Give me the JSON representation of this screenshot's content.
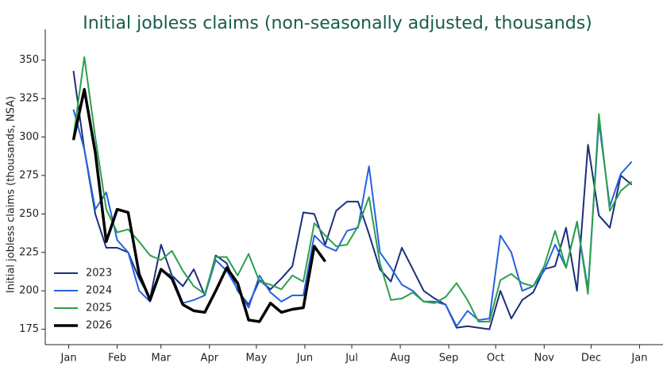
{
  "chart_data": {
    "type": "line",
    "title": "Initial jobless claims (non-seasonally adjusted, thousands)",
    "y_label": "Initial jobless claims (thousands, NSA)",
    "x": [
      3,
      10,
      17,
      24,
      31,
      38,
      45,
      52,
      59,
      66,
      73,
      80,
      87,
      94,
      101,
      108,
      115,
      122,
      129,
      136,
      143,
      150,
      157,
      164,
      171,
      178,
      185,
      192,
      199,
      206,
      213,
      220,
      227,
      234,
      241,
      248,
      255,
      262,
      269,
      276,
      283,
      290,
      297,
      304,
      311,
      318,
      325,
      332,
      339,
      346,
      353,
      360
    ],
    "xlim": [
      -15,
      380
    ],
    "xticks": [
      {
        "value": 0,
        "label": "Jan"
      },
      {
        "value": 31,
        "label": "Feb"
      },
      {
        "value": 59,
        "label": "Mar"
      },
      {
        "value": 90,
        "label": "Apr"
      },
      {
        "value": 120,
        "label": "May"
      },
      {
        "value": 151,
        "label": "Jun"
      },
      {
        "value": 181,
        "label": "Jul"
      },
      {
        "value": 212,
        "label": "Aug"
      },
      {
        "value": 243,
        "label": "Sep"
      },
      {
        "value": 273,
        "label": "Oct"
      },
      {
        "value": 304,
        "label": "Nov"
      },
      {
        "value": 334,
        "label": "Dec"
      },
      {
        "value": 365,
        "label": "Jan"
      }
    ],
    "ylim": [
      165,
      370
    ],
    "yticks": [
      175,
      200,
      225,
      250,
      275,
      300,
      325,
      350
    ],
    "grid": false,
    "legend": "lower left",
    "series": [
      {
        "name": "2023",
        "color": "#1b2f7a",
        "linewidth": 2,
        "values": [
          343,
          292,
          250,
          228,
          228,
          225,
          208,
          195,
          230,
          210,
          203,
          214,
          197,
          223,
          218,
          200,
          191,
          207,
          201,
          208,
          216,
          251,
          250,
          230,
          252,
          258,
          258,
          237,
          214,
          206,
          228,
          214,
          200,
          195,
          191,
          176,
          177,
          176,
          175,
          200,
          182,
          194,
          199,
          214,
          216,
          241,
          200,
          295,
          249,
          241,
          275,
          269
        ]
      },
      {
        "name": "2024",
        "color": "#2563e0",
        "linewidth": 2,
        "values": [
          318,
          292,
          253,
          264,
          233,
          225,
          200,
          193,
          213,
          210,
          192,
          194,
          197,
          220,
          213,
          201,
          189,
          210,
          199,
          193,
          197,
          197,
          236,
          229,
          226,
          239,
          241,
          281,
          225,
          215,
          204,
          200,
          193,
          193,
          191,
          177,
          187,
          181,
          182,
          236,
          225,
          200,
          203,
          213,
          230,
          215,
          245,
          201,
          310,
          255,
          276,
          284
        ]
      },
      {
        "name": "2025",
        "color": "#2ca04c",
        "linewidth": 2,
        "values": [
          300,
          352,
          300,
          253,
          238,
          240,
          232,
          223,
          220,
          226,
          213,
          203,
          198,
          222,
          222,
          210,
          224,
          206,
          204,
          201,
          210,
          206,
          244,
          236,
          229,
          230,
          242,
          261,
          218,
          194,
          195,
          199,
          193,
          192,
          196,
          205,
          194,
          180,
          180,
          207,
          211,
          205,
          203,
          216,
          239,
          215,
          245,
          198,
          315,
          252,
          265,
          271
        ]
      },
      {
        "name": "2026",
        "color": "#000000",
        "linewidth": 3.5,
        "values": [
          298,
          331,
          290,
          232,
          253,
          251,
          211,
          194,
          214,
          208,
          191,
          187,
          186,
          200,
          215,
          205,
          181,
          180,
          192,
          186,
          188,
          189,
          229,
          219,
          null,
          null,
          null,
          null,
          null,
          null,
          null,
          null,
          null,
          null,
          null,
          null,
          null,
          null,
          null,
          null,
          null,
          null,
          null,
          null,
          null,
          null,
          null,
          null,
          null,
          null,
          null,
          null
        ]
      }
    ]
  }
}
